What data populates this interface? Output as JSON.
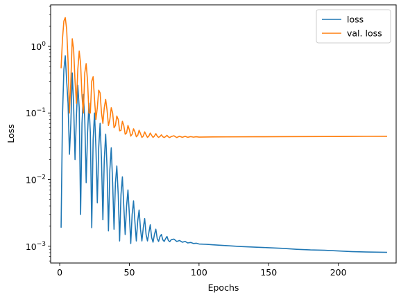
{
  "chart_data": {
    "type": "line",
    "title": "",
    "xlabel": "Epochs",
    "ylabel": "Loss",
    "xlim": [
      -6.5,
      241.5
    ],
    "ylim": [
      0.00056,
      4.2
    ],
    "yscale": "log",
    "grid": false,
    "legend_position": "top-right",
    "x_ticks": [
      0,
      50,
      100,
      150,
      200
    ],
    "y_ticks": [
      {
        "value": 0.001,
        "base": "10",
        "exp": "−3"
      },
      {
        "value": 0.01,
        "base": "10",
        "exp": "−2"
      },
      {
        "value": 0.1,
        "base": "10",
        "exp": "−1"
      },
      {
        "value": 1,
        "base": "10",
        "exp": "0"
      }
    ],
    "series": [
      {
        "name": "loss",
        "color": "#1f77b4",
        "points": [
          [
            1,
            0.0019
          ],
          [
            2,
            0.09
          ],
          [
            3,
            0.45
          ],
          [
            4,
            0.72
          ],
          [
            5,
            0.3
          ],
          [
            6,
            0.14
          ],
          [
            7,
            0.024
          ],
          [
            8,
            0.07
          ],
          [
            9,
            0.4
          ],
          [
            10,
            0.13
          ],
          [
            11,
            0.02
          ],
          [
            12,
            0.09
          ],
          [
            13,
            0.26
          ],
          [
            14,
            0.12
          ],
          [
            15,
            0.003
          ],
          [
            16,
            0.07
          ],
          [
            17,
            0.19
          ],
          [
            18,
            0.08
          ],
          [
            19,
            0.009
          ],
          [
            20,
            0.05
          ],
          [
            21,
            0.14
          ],
          [
            22,
            0.05
          ],
          [
            23,
            0.0019
          ],
          [
            24,
            0.04
          ],
          [
            25,
            0.1
          ],
          [
            26,
            0.03
          ],
          [
            27,
            0.0045
          ],
          [
            28,
            0.03
          ],
          [
            29,
            0.07
          ],
          [
            30,
            0.02
          ],
          [
            31,
            0.0025
          ],
          [
            32,
            0.02
          ],
          [
            33,
            0.048
          ],
          [
            34,
            0.015
          ],
          [
            35,
            0.0017
          ],
          [
            36,
            0.014
          ],
          [
            37,
            0.03
          ],
          [
            38,
            0.009
          ],
          [
            39,
            0.0018
          ],
          [
            40,
            0.009
          ],
          [
            41,
            0.016
          ],
          [
            42,
            0.006
          ],
          [
            43,
            0.0012
          ],
          [
            44,
            0.006
          ],
          [
            45,
            0.011
          ],
          [
            46,
            0.004
          ],
          [
            47,
            0.0015
          ],
          [
            48,
            0.004
          ],
          [
            49,
            0.007
          ],
          [
            50,
            0.003
          ],
          [
            51,
            0.0011
          ],
          [
            52,
            0.003
          ],
          [
            53,
            0.0048
          ],
          [
            54,
            0.0023
          ],
          [
            55,
            0.0012
          ],
          [
            56,
            0.0024
          ],
          [
            57,
            0.0035
          ],
          [
            58,
            0.0018
          ],
          [
            59,
            0.0012
          ],
          [
            60,
            0.0019
          ],
          [
            61,
            0.0026
          ],
          [
            62,
            0.0015
          ],
          [
            63,
            0.0012
          ],
          [
            64,
            0.0016
          ],
          [
            65,
            0.0021
          ],
          [
            66,
            0.00135
          ],
          [
            67,
            0.00115
          ],
          [
            68,
            0.0015
          ],
          [
            69,
            0.0018
          ],
          [
            70,
            0.0013
          ],
          [
            71,
            0.00118
          ],
          [
            72,
            0.0014
          ],
          [
            73,
            0.0015
          ],
          [
            74,
            0.00125
          ],
          [
            75,
            0.00118
          ],
          [
            76,
            0.0013
          ],
          [
            77,
            0.0014
          ],
          [
            78,
            0.00122
          ],
          [
            79,
            0.00117
          ],
          [
            80,
            0.00125
          ],
          [
            82,
            0.00128
          ],
          [
            84,
            0.00118
          ],
          [
            86,
            0.00122
          ],
          [
            88,
            0.00115
          ],
          [
            90,
            0.00118
          ],
          [
            92,
            0.00112
          ],
          [
            94,
            0.00114
          ],
          [
            96,
            0.0011
          ],
          [
            98,
            0.00111
          ],
          [
            100,
            0.00108
          ],
          [
            105,
            0.00107
          ],
          [
            110,
            0.00105
          ],
          [
            120,
            0.00102
          ],
          [
            130,
            0.00099
          ],
          [
            140,
            0.00097
          ],
          [
            150,
            0.00095
          ],
          [
            160,
            0.00093
          ],
          [
            170,
            0.0009
          ],
          [
            180,
            0.00088
          ],
          [
            190,
            0.00087
          ],
          [
            200,
            0.00085
          ],
          [
            210,
            0.00083
          ],
          [
            220,
            0.00082
          ],
          [
            235,
            0.00081
          ]
        ]
      },
      {
        "name": "val. loss",
        "color": "#ff7f0e",
        "points": [
          [
            1,
            0.47
          ],
          [
            2,
            1.3
          ],
          [
            3,
            2.4
          ],
          [
            4,
            2.7
          ],
          [
            5,
            1.8
          ],
          [
            6,
            0.6
          ],
          [
            7,
            0.1
          ],
          [
            8,
            0.3
          ],
          [
            9,
            1.3
          ],
          [
            10,
            0.9
          ],
          [
            11,
            0.3
          ],
          [
            12,
            0.14
          ],
          [
            13,
            0.45
          ],
          [
            14,
            0.85
          ],
          [
            15,
            0.55
          ],
          [
            16,
            0.18
          ],
          [
            17,
            0.1
          ],
          [
            18,
            0.4
          ],
          [
            19,
            0.55
          ],
          [
            20,
            0.3
          ],
          [
            21,
            0.1
          ],
          [
            22,
            0.1
          ],
          [
            23,
            0.3
          ],
          [
            24,
            0.35
          ],
          [
            25,
            0.16
          ],
          [
            26,
            0.08
          ],
          [
            27,
            0.12
          ],
          [
            28,
            0.22
          ],
          [
            29,
            0.2
          ],
          [
            30,
            0.1
          ],
          [
            31,
            0.07
          ],
          [
            32,
            0.12
          ],
          [
            33,
            0.16
          ],
          [
            34,
            0.11
          ],
          [
            35,
            0.065
          ],
          [
            36,
            0.08
          ],
          [
            37,
            0.12
          ],
          [
            38,
            0.1
          ],
          [
            39,
            0.06
          ],
          [
            40,
            0.065
          ],
          [
            41,
            0.09
          ],
          [
            42,
            0.08
          ],
          [
            43,
            0.054
          ],
          [
            44,
            0.055
          ],
          [
            45,
            0.075
          ],
          [
            46,
            0.065
          ],
          [
            47,
            0.048
          ],
          [
            48,
            0.05
          ],
          [
            49,
            0.065
          ],
          [
            50,
            0.056
          ],
          [
            51,
            0.045
          ],
          [
            52,
            0.048
          ],
          [
            53,
            0.058
          ],
          [
            54,
            0.052
          ],
          [
            55,
            0.044
          ],
          [
            56,
            0.046
          ],
          [
            57,
            0.055
          ],
          [
            58,
            0.049
          ],
          [
            59,
            0.043
          ],
          [
            60,
            0.045
          ],
          [
            61,
            0.052
          ],
          [
            62,
            0.047
          ],
          [
            63,
            0.043
          ],
          [
            64,
            0.045
          ],
          [
            65,
            0.05
          ],
          [
            66,
            0.046
          ],
          [
            67,
            0.043
          ],
          [
            68,
            0.045
          ],
          [
            69,
            0.049
          ],
          [
            70,
            0.045
          ],
          [
            71,
            0.043
          ],
          [
            72,
            0.0445
          ],
          [
            73,
            0.047
          ],
          [
            74,
            0.044
          ],
          [
            75,
            0.0428
          ],
          [
            76,
            0.0442
          ],
          [
            77,
            0.0462
          ],
          [
            78,
            0.0438
          ],
          [
            79,
            0.0428
          ],
          [
            80,
            0.0442
          ],
          [
            82,
            0.0455
          ],
          [
            84,
            0.0428
          ],
          [
            86,
            0.0448
          ],
          [
            88,
            0.0432
          ],
          [
            90,
            0.0446
          ],
          [
            92,
            0.0432
          ],
          [
            94,
            0.0442
          ],
          [
            96,
            0.0434
          ],
          [
            98,
            0.044
          ],
          [
            100,
            0.0435
          ],
          [
            110,
            0.0437
          ],
          [
            120,
            0.0438
          ],
          [
            140,
            0.044
          ],
          [
            160,
            0.0441
          ],
          [
            180,
            0.0443
          ],
          [
            200,
            0.0444
          ],
          [
            220,
            0.0446
          ],
          [
            235,
            0.0447
          ]
        ]
      }
    ]
  }
}
